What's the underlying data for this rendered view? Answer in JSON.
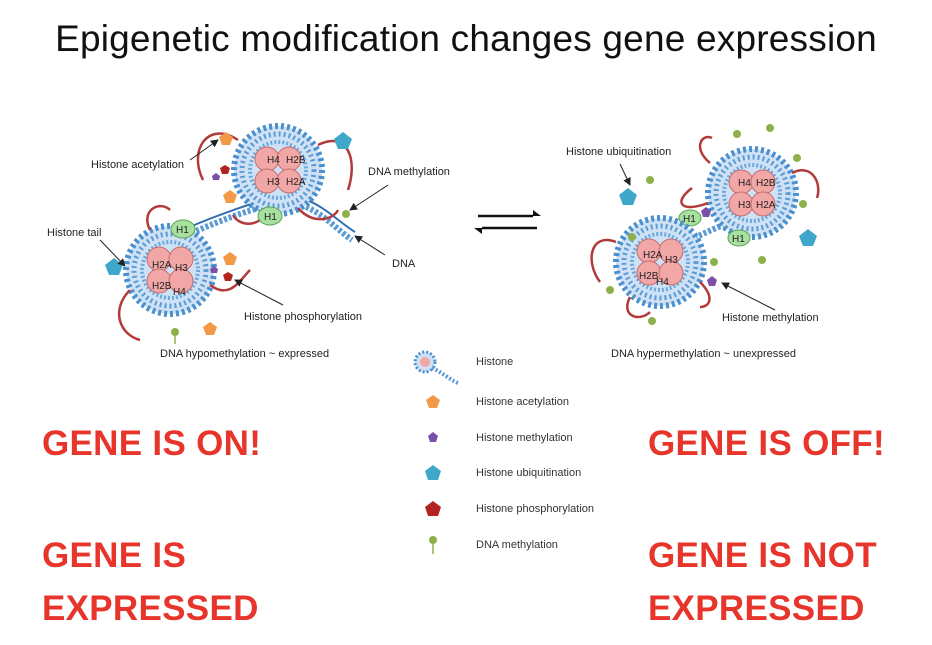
{
  "title": "Epigenetic modification changes gene expression",
  "left_panel": {
    "labels": {
      "histone_acetylation": "Histone acetylation",
      "dna_methylation": "DNA methylation",
      "histone_tail": "Histone tail",
      "dna": "DNA",
      "histone_phosphorylation": "Histone phosphorylation",
      "caption": "DNA hypomethylation ~ expressed"
    },
    "status_line1": "GENE IS ON!",
    "status_line2": "GENE IS",
    "status_line3": "EXPRESSED"
  },
  "right_panel": {
    "labels": {
      "histone_ubiquitination": "Histone ubiquitination",
      "histone_methylation": "Histone methylation",
      "caption": "DNA hypermethylation ~ unexpressed"
    },
    "status_line1": "GENE IS OFF!",
    "status_line2": "GENE IS NOT",
    "status_line3": "EXPRESSED"
  },
  "histone_units": {
    "h1": "H1",
    "h2a": "H2A",
    "h2b": "H2B",
    "h3": "H3",
    "h4": "H4"
  },
  "legend": [
    {
      "key": "histone",
      "label": "Histone",
      "color": "#4a8fd0"
    },
    {
      "key": "acetylation",
      "label": "Histone acetylation",
      "color": "#f29a47"
    },
    {
      "key": "methylation",
      "label": "Histone methylation",
      "color": "#7a4fa8"
    },
    {
      "key": "ubiquitination",
      "label": "Histone ubiquitination",
      "color": "#3fa7c9"
    },
    {
      "key": "phosphorylation",
      "label": "Histone phosphorylation",
      "color": "#b3231f"
    },
    {
      "key": "dna_methylation",
      "label": "DNA methylation",
      "color": "#8db04a"
    }
  ],
  "colors": {
    "accent_red": "#e8352b",
    "dna": "#5b9bd5",
    "histone_core": "#f2a7a7",
    "h1": "#a8e0a0",
    "tail": "#b23a3a"
  }
}
